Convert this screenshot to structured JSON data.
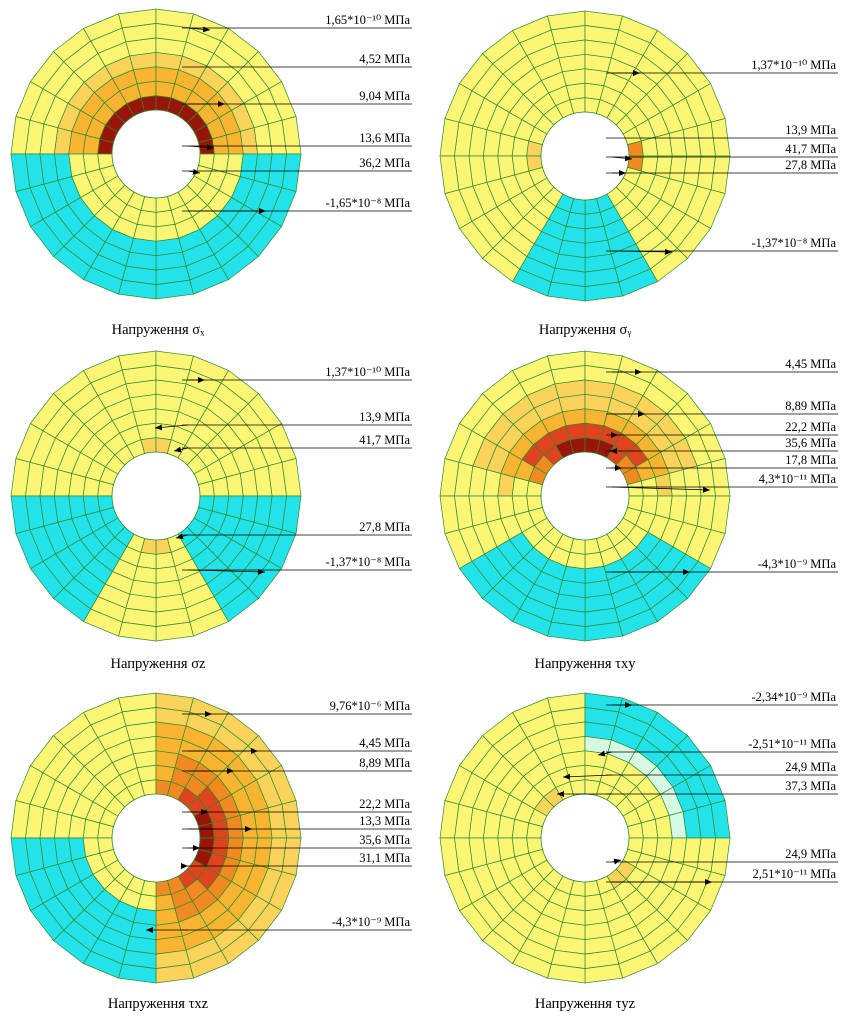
{
  "colors": {
    "yellow": "#FDF574",
    "light_orange": "#FBD35A",
    "orange": "#F9B531",
    "dark_orange": "#F28A22",
    "red": "#E0431E",
    "dark_red": "#9A1509",
    "cyan": "#22E3EA",
    "pale_cyan": "#D6F9E2",
    "grid": "#2E8A2E"
  },
  "panels": [
    {
      "id": "sx",
      "caption": "Напруження σₓ",
      "annotations": [
        {
          "label": "1,65*10⁻¹⁰ МПа"
        },
        {
          "label": "4,52 МПа"
        },
        {
          "label": "9,04 МПа"
        },
        {
          "label": "13,6 МПа"
        },
        {
          "label": "36,2 МПа"
        },
        {
          "label": "-1,65*10⁻⁸ МПа"
        }
      ]
    },
    {
      "id": "sy",
      "caption": "Напруження σᵧ",
      "annotations": [
        {
          "label": "1,37*10⁻¹⁰ МПа"
        },
        {
          "label": "13,9 МПа"
        },
        {
          "label": "41,7 МПа"
        },
        {
          "label": "27,8 МПа"
        },
        {
          "label": "-1,37*10⁻⁸ МПа"
        }
      ]
    },
    {
      "id": "sz",
      "caption": "Напруження σz",
      "annotations": [
        {
          "label": "1,37*10⁻¹⁰ МПа"
        },
        {
          "label": "13,9 МПа"
        },
        {
          "label": "41,7 МПа"
        },
        {
          "label": "27,8 МПа"
        },
        {
          "label": "-1,37*10⁻⁸ МПа"
        }
      ]
    },
    {
      "id": "txy",
      "caption": "Напруження τxy",
      "annotations": [
        {
          "label": "4,45 МПа"
        },
        {
          "label": "8,89 МПа"
        },
        {
          "label": "22,2 МПа"
        },
        {
          "label": "35,6 МПа"
        },
        {
          "label": "17,8 МПа"
        },
        {
          "label": "4,3*10⁻¹¹ МПа"
        },
        {
          "label": "-4,3*10⁻⁹ МПа"
        }
      ]
    },
    {
      "id": "txz",
      "caption": "Напруження τxz",
      "annotations": [
        {
          "label": "9,76*10⁻⁶ МПа"
        },
        {
          "label": "4,45 МПа"
        },
        {
          "label": "8,89 МПа"
        },
        {
          "label": "22,2 МПа"
        },
        {
          "label": "13,3 МПа"
        },
        {
          "label": "35,6 МПа"
        },
        {
          "label": "31,1 МПа"
        },
        {
          "label": "-4,3*10⁻⁹ МПа"
        }
      ]
    },
    {
      "id": "tyz",
      "caption": "Напруження τyz",
      "annotations": [
        {
          "label": "-2,34*10⁻⁹ МПа"
        },
        {
          "label": "-2,51*10⁻¹¹ МПа"
        },
        {
          "label": "24,9 МПа"
        },
        {
          "label": "37,3 МПа"
        },
        {
          "label": "24,9 МПа"
        },
        {
          "label": "2,51*10⁻¹¹ МПа"
        }
      ]
    }
  ]
}
